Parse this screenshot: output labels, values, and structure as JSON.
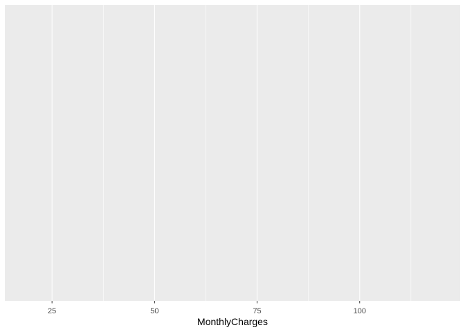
{
  "chart_data": {
    "type": "area",
    "title": "",
    "xlabel": "MonthlyCharges",
    "ylabel": "",
    "xlim": [
      13.5,
      124.5
    ],
    "x_ticks": [
      25,
      50,
      75,
      100
    ],
    "x_tick_labels": [
      "25",
      "50",
      "75",
      "100"
    ],
    "x_minor_breaks": [
      37.5,
      62.5,
      87.5,
      112.5
    ],
    "y_ticks": [],
    "series": [],
    "grid": true,
    "panel_color": "#ebebeb",
    "grid_color": "#ffffff",
    "legend": "none"
  }
}
